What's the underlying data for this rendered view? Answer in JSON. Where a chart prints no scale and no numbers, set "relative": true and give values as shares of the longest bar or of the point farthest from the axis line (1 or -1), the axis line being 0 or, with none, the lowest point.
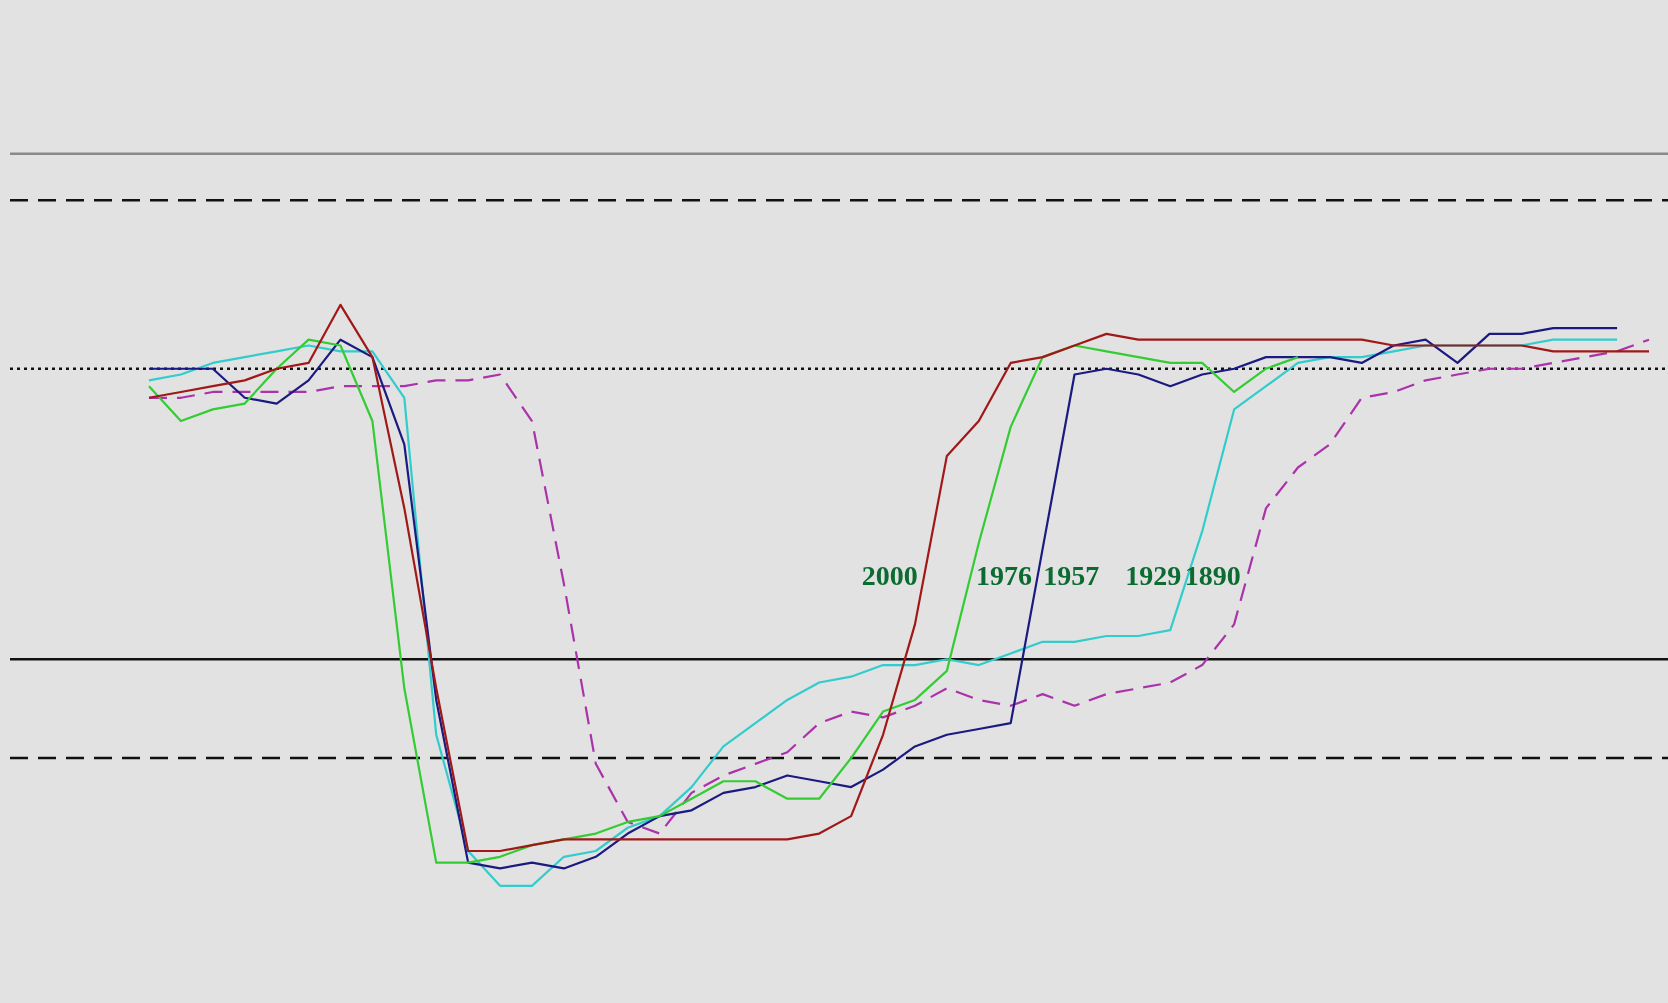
{
  "chart_data": {
    "type": "line",
    "relative": true,
    "marker": "none",
    "categories": [
      null,
      null,
      null,
      null,
      null,
      null,
      null,
      null,
      null,
      null,
      null,
      null,
      null,
      null,
      null,
      null,
      null,
      null,
      null,
      null,
      null,
      null,
      null,
      null,
      null,
      null,
      null,
      null,
      null,
      null,
      null,
      null,
      null,
      null,
      null,
      null,
      null,
      null,
      null,
      null,
      null,
      null,
      null,
      null,
      null,
      null,
      null,
      null
    ],
    "series": [
      {
        "name": "2000",
        "color": "#a01818",
        "line_style": "solid",
        "values": [
          0.84,
          0.85,
          0.86,
          0.87,
          0.89,
          0.9,
          1.0,
          0.91,
          0.65,
          0.34,
          0.06,
          0.06,
          0.07,
          0.08,
          0.08,
          0.08,
          0.08,
          0.08,
          0.08,
          0.08,
          0.08,
          0.09,
          0.12,
          0.26,
          0.45,
          0.74,
          0.8,
          0.9,
          0.91,
          0.93,
          0.95,
          0.94,
          0.94,
          0.94,
          0.94,
          0.94,
          0.94,
          0.94,
          0.94,
          0.93,
          0.93,
          0.93,
          0.93,
          0.93,
          0.92,
          0.92,
          0.92,
          0.92
        ]
      },
      {
        "name": "1976",
        "color": "#33cc33",
        "line_style": "solid",
        "values": [
          0.86,
          0.8,
          0.82,
          0.83,
          0.89,
          0.94,
          0.93,
          0.8,
          0.34,
          0.04,
          0.04,
          0.05,
          0.07,
          0.08,
          0.09,
          0.11,
          0.12,
          0.15,
          0.18,
          0.18,
          0.15,
          0.15,
          0.22,
          0.3,
          0.32,
          0.37,
          0.59,
          0.79,
          0.91,
          0.93,
          0.92,
          0.91,
          0.9,
          0.9,
          0.85,
          0.89,
          0.91,
          null,
          null,
          null,
          null,
          null,
          null,
          null,
          null,
          null,
          null,
          null
        ]
      },
      {
        "name": "1957",
        "color": "#1a1a80",
        "line_style": "solid",
        "values": [
          0.89,
          0.89,
          0.89,
          0.84,
          0.83,
          0.87,
          0.94,
          0.91,
          0.76,
          0.32,
          0.04,
          0.03,
          0.04,
          0.03,
          0.05,
          0.09,
          0.12,
          0.13,
          0.16,
          0.17,
          0.19,
          0.18,
          0.17,
          0.2,
          0.24,
          0.26,
          0.27,
          0.28,
          0.58,
          0.88,
          0.89,
          0.88,
          0.86,
          0.88,
          0.89,
          0.91,
          0.91,
          0.91,
          0.9,
          0.93,
          0.94,
          0.9,
          0.95,
          0.95,
          0.96,
          0.96,
          0.96,
          null
        ]
      },
      {
        "name": "1929",
        "color": "#33cccc",
        "line_style": "solid",
        "values": [
          0.87,
          0.88,
          0.9,
          0.91,
          0.92,
          0.93,
          0.92,
          0.92,
          0.84,
          0.26,
          0.06,
          0.0,
          0.0,
          0.05,
          0.06,
          0.1,
          0.12,
          0.17,
          0.24,
          0.28,
          0.32,
          0.35,
          0.36,
          0.38,
          0.38,
          0.39,
          0.38,
          0.4,
          0.42,
          0.42,
          0.43,
          0.43,
          0.44,
          0.61,
          0.82,
          0.86,
          0.9,
          0.91,
          0.91,
          0.92,
          0.93,
          0.93,
          0.93,
          0.93,
          0.94,
          0.94,
          0.94,
          null
        ]
      },
      {
        "name": "1890",
        "color": "#aa33aa",
        "line_style": "dashed",
        "values": [
          0.84,
          0.84,
          0.85,
          0.85,
          0.85,
          0.85,
          0.86,
          0.86,
          0.86,
          0.87,
          0.87,
          0.88,
          0.8,
          0.52,
          0.21,
          0.11,
          0.09,
          0.16,
          0.19,
          0.21,
          0.23,
          0.28,
          0.3,
          0.29,
          0.31,
          0.34,
          0.32,
          0.31,
          0.33,
          0.31,
          0.33,
          0.34,
          0.35,
          0.38,
          0.45,
          0.65,
          0.72,
          0.76,
          0.84,
          0.85,
          0.87,
          0.88,
          0.89,
          0.89,
          0.9,
          0.91,
          0.92,
          0.94
        ]
      }
    ],
    "ref_lines": [
      {
        "axis": "y",
        "value": 1.26,
        "color": "#8a8a8a",
        "line_style": "solid"
      },
      {
        "axis": "y",
        "value": 1.18,
        "color": "#111111",
        "line_style": "dashed"
      },
      {
        "axis": "y",
        "value": 0.89,
        "color": "#111111",
        "line_style": "dotted"
      },
      {
        "axis": "y",
        "value": 0.39,
        "color": "#111111",
        "line_style": "solid"
      },
      {
        "axis": "y",
        "value": 0.22,
        "color": "#111111",
        "line_style": "dashed"
      }
    ]
  }
}
